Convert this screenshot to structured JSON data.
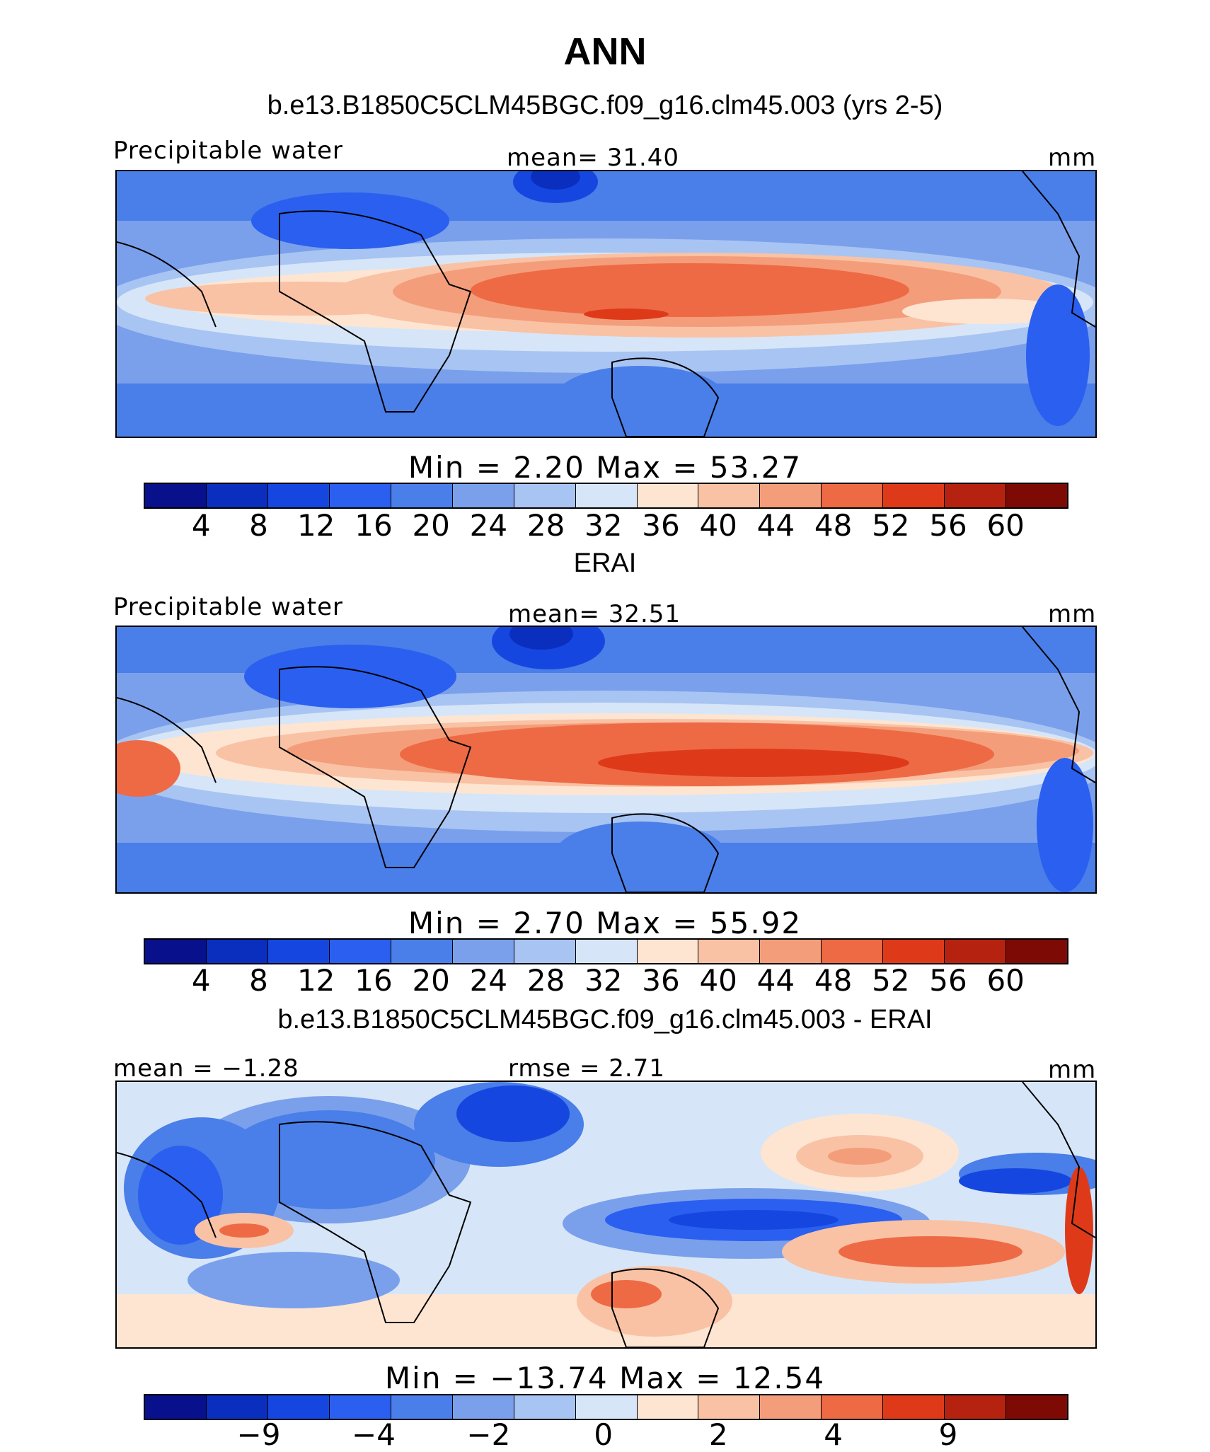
{
  "figure_title": "ANN",
  "palette": {
    "abs": [
      "#08108c",
      "#0a2fbf",
      "#1547e0",
      "#2a5ff0",
      "#4a7ee8",
      "#7aa0ec",
      "#a8c4f2",
      "#d6e6f8",
      "#fde5d2",
      "#f9c2a5",
      "#f49d7a",
      "#ee6a45",
      "#de3a1a",
      "#b52310",
      "#7d0a05"
    ],
    "diff": [
      "#08108c",
      "#0a2fbf",
      "#1547e0",
      "#2a5ff0",
      "#4a7ee8",
      "#7aa0ec",
      "#a8c4f2",
      "#d6e6f8",
      "#fde5d2",
      "#f9c2a5",
      "#f49d7a",
      "#ee6a45",
      "#de3a1a",
      "#b52310",
      "#7d0a05"
    ]
  },
  "panels": [
    {
      "title": "b.e13.B1850C5CLM45BGC.f09_g16.clm45.003 (yrs 2-5)",
      "left_label": "Precipitable water",
      "center_label": "mean=   31.40",
      "right_label": "mm",
      "min_max": "Min  =     2.20  Max  =     53.27",
      "colorbar_ticks": [
        "4",
        "8",
        "12",
        "16",
        "20",
        "24",
        "28",
        "32",
        "36",
        "40",
        "44",
        "48",
        "52",
        "56",
        "60"
      ]
    },
    {
      "title": "ERAI",
      "left_label": "Precipitable water",
      "center_label": "mean=   32.51",
      "right_label": "mm",
      "min_max": "Min  =     2.70  Max  =     55.92",
      "colorbar_ticks": [
        "4",
        "8",
        "12",
        "16",
        "20",
        "24",
        "28",
        "32",
        "36",
        "40",
        "44",
        "48",
        "52",
        "56",
        "60"
      ]
    },
    {
      "title": "b.e13.B1850C5CLM45BGC.f09_g16.clm45.003 - ERAI",
      "left_label": "mean  =   −1.28",
      "center_label": "rmse  =    2.71",
      "right_label": "mm",
      "min_max": "Min  = −13.74  Max  =    12.54",
      "colorbar_ticks": [
        "−9",
        "−4",
        "−2",
        "0",
        "2",
        "4",
        "9"
      ]
    }
  ]
}
